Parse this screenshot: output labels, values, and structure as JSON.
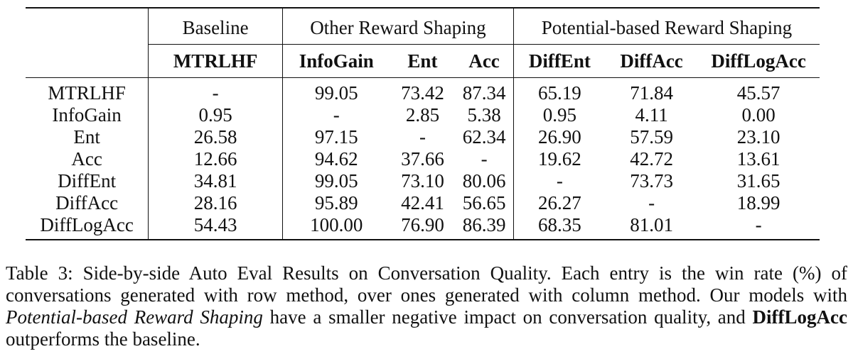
{
  "table": {
    "group_headers": {
      "baseline": "Baseline",
      "other": "Other Reward Shaping",
      "potential": "Potential-based Reward Shaping"
    },
    "columns": [
      "MTRLHF",
      "InfoGain",
      "Ent",
      "Acc",
      "DiffEnt",
      "DiffAcc",
      "DiffLogAcc"
    ],
    "rows": [
      {
        "label": "MTRLHF",
        "cells": [
          "-",
          "99.05",
          "73.42",
          "87.34",
          "65.19",
          "71.84",
          "45.57"
        ]
      },
      {
        "label": "InfoGain",
        "cells": [
          "0.95",
          "-",
          "2.85",
          "5.38",
          "0.95",
          "4.11",
          "0.00"
        ]
      },
      {
        "label": "Ent",
        "cells": [
          "26.58",
          "97.15",
          "-",
          "62.34",
          "26.90",
          "57.59",
          "23.10"
        ]
      },
      {
        "label": "Acc",
        "cells": [
          "12.66",
          "94.62",
          "37.66",
          "-",
          "19.62",
          "42.72",
          "13.61"
        ]
      },
      {
        "label": "DiffEnt",
        "cells": [
          "34.81",
          "99.05",
          "73.10",
          "80.06",
          "-",
          "73.73",
          "31.65"
        ]
      },
      {
        "label": "DiffAcc",
        "cells": [
          "28.16",
          "95.89",
          "42.41",
          "56.65",
          "26.27",
          "-",
          "18.99"
        ]
      },
      {
        "label": "DiffLogAcc",
        "cells": [
          "54.43",
          "100.00",
          "76.90",
          "86.39",
          "68.35",
          "81.01",
          "-"
        ]
      }
    ]
  },
  "caption": {
    "part1": "Table 3: Side-by-side Auto Eval Results on Conversation Quality. Each entry is the win rate (%) of conversations generated with row method, over ones generated with column method. Our models with ",
    "emph": "Potential-based Reward Shaping",
    "part2": " have a smaller negative impact on conversation quality, and ",
    "strong": "DiffLogAcc",
    "part3": " outperforms the baseline."
  }
}
